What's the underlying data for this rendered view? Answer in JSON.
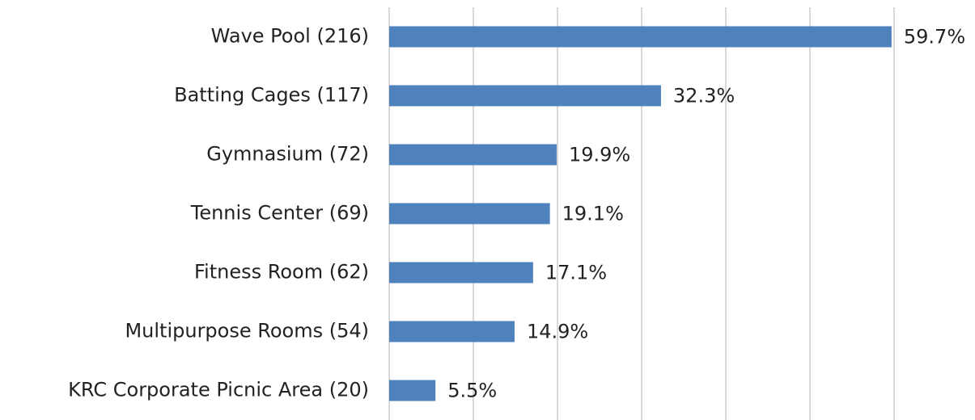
{
  "chart_data": {
    "type": "bar",
    "orientation": "horizontal",
    "categories": [
      "Wave Pool (216)",
      "Batting Cages (117)",
      "Gymnasium (72)",
      "Tennis Center (69)",
      "Fitness Room (62)",
      "Multipurpose Rooms (54)",
      "KRC Corporate Picnic Area (20)"
    ],
    "values": [
      59.7,
      32.3,
      19.9,
      19.1,
      17.1,
      14.9,
      5.5
    ],
    "value_labels": [
      "59.7%",
      "32.3%",
      "19.9%",
      "19.1%",
      "17.1%",
      "14.9%",
      "5.5%"
    ],
    "color": "#4f81bd",
    "xlim": [
      0,
      60
    ],
    "xticks": [
      0,
      10,
      20,
      30,
      40,
      50,
      60
    ],
    "grid": true
  }
}
